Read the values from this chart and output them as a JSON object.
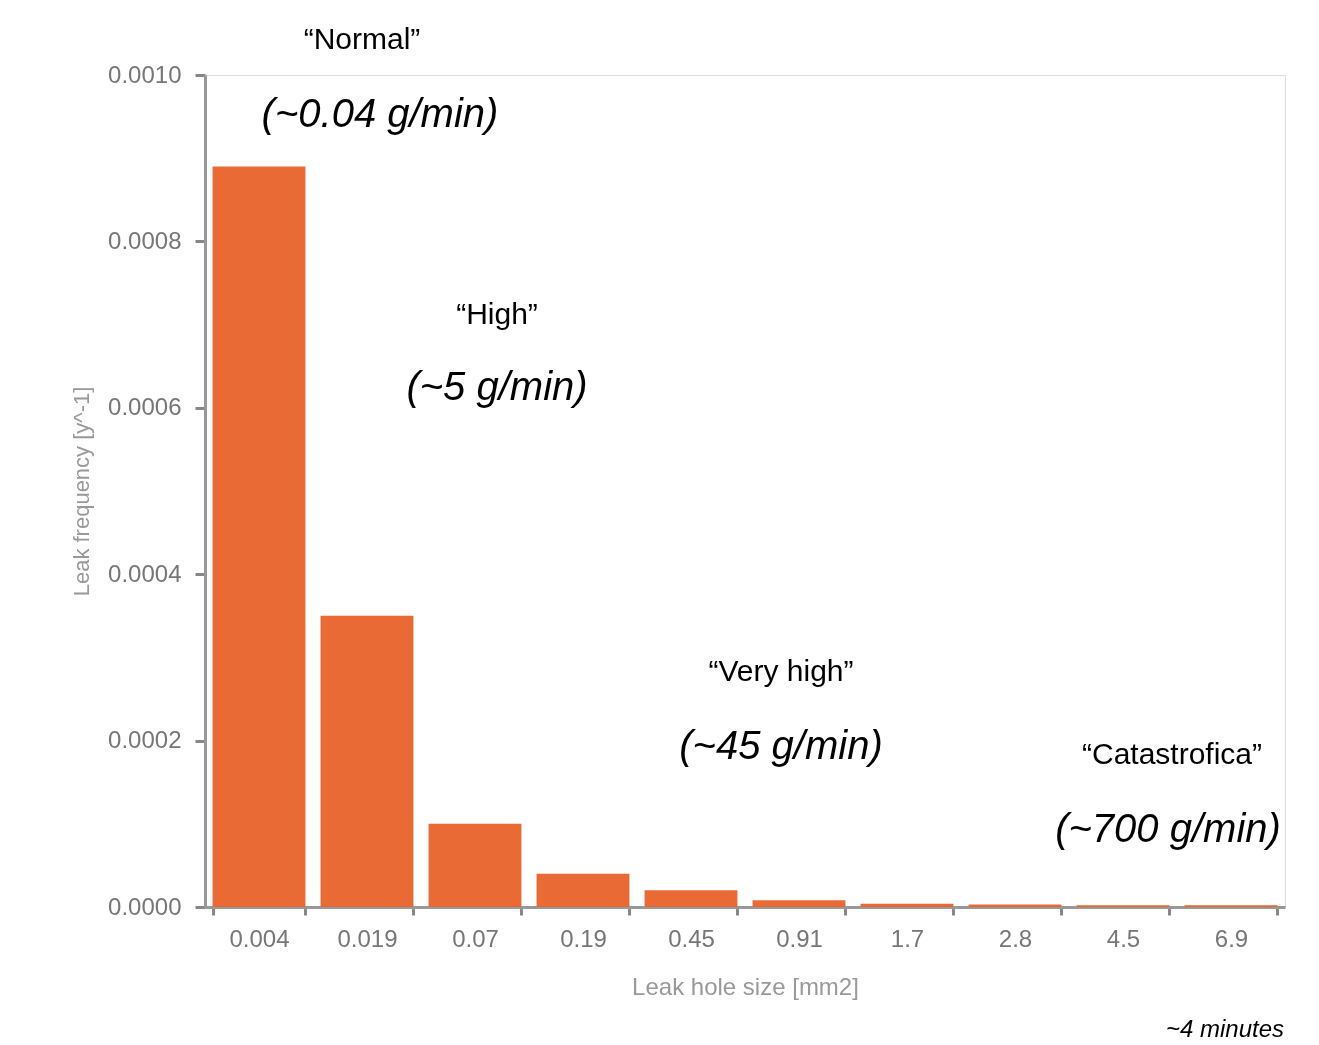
{
  "chart_data": {
    "type": "bar",
    "xlabel": "Leak hole size [mm2]",
    "ylabel": "Leak frequency [y^-1]",
    "categories": [
      "0.004",
      "0.019",
      "0.07",
      "0.19",
      "0.45",
      "0.91",
      "1.7",
      "2.8",
      "4.5",
      "6.9"
    ],
    "values": [
      0.00089,
      0.00035,
      0.0001,
      4e-05,
      2e-05,
      8e-06,
      4e-06,
      3e-06,
      2e-06,
      2e-06
    ],
    "color": "#e8622a",
    "ylim": [
      0,
      0.001
    ],
    "yticks": [
      {
        "value": 0,
        "label": "0.0000"
      },
      {
        "value": 0.0002,
        "label": "0.0002"
      },
      {
        "value": 0.0004,
        "label": "0.0004"
      },
      {
        "value": 0.0006,
        "label": "0.0006"
      },
      {
        "value": 0.0008,
        "label": "0.0008"
      },
      {
        "value": 0.001,
        "label": "0.0010"
      }
    ],
    "grid": false,
    "annotations": [
      "“Normal”",
      "(~0.04 g/min)",
      "“High”",
      "(~5 g/min)",
      "“Very high”",
      "(~45 g/min)",
      "“Catastrofica”",
      "(~700 g/min)",
      "~4 minutes"
    ]
  }
}
